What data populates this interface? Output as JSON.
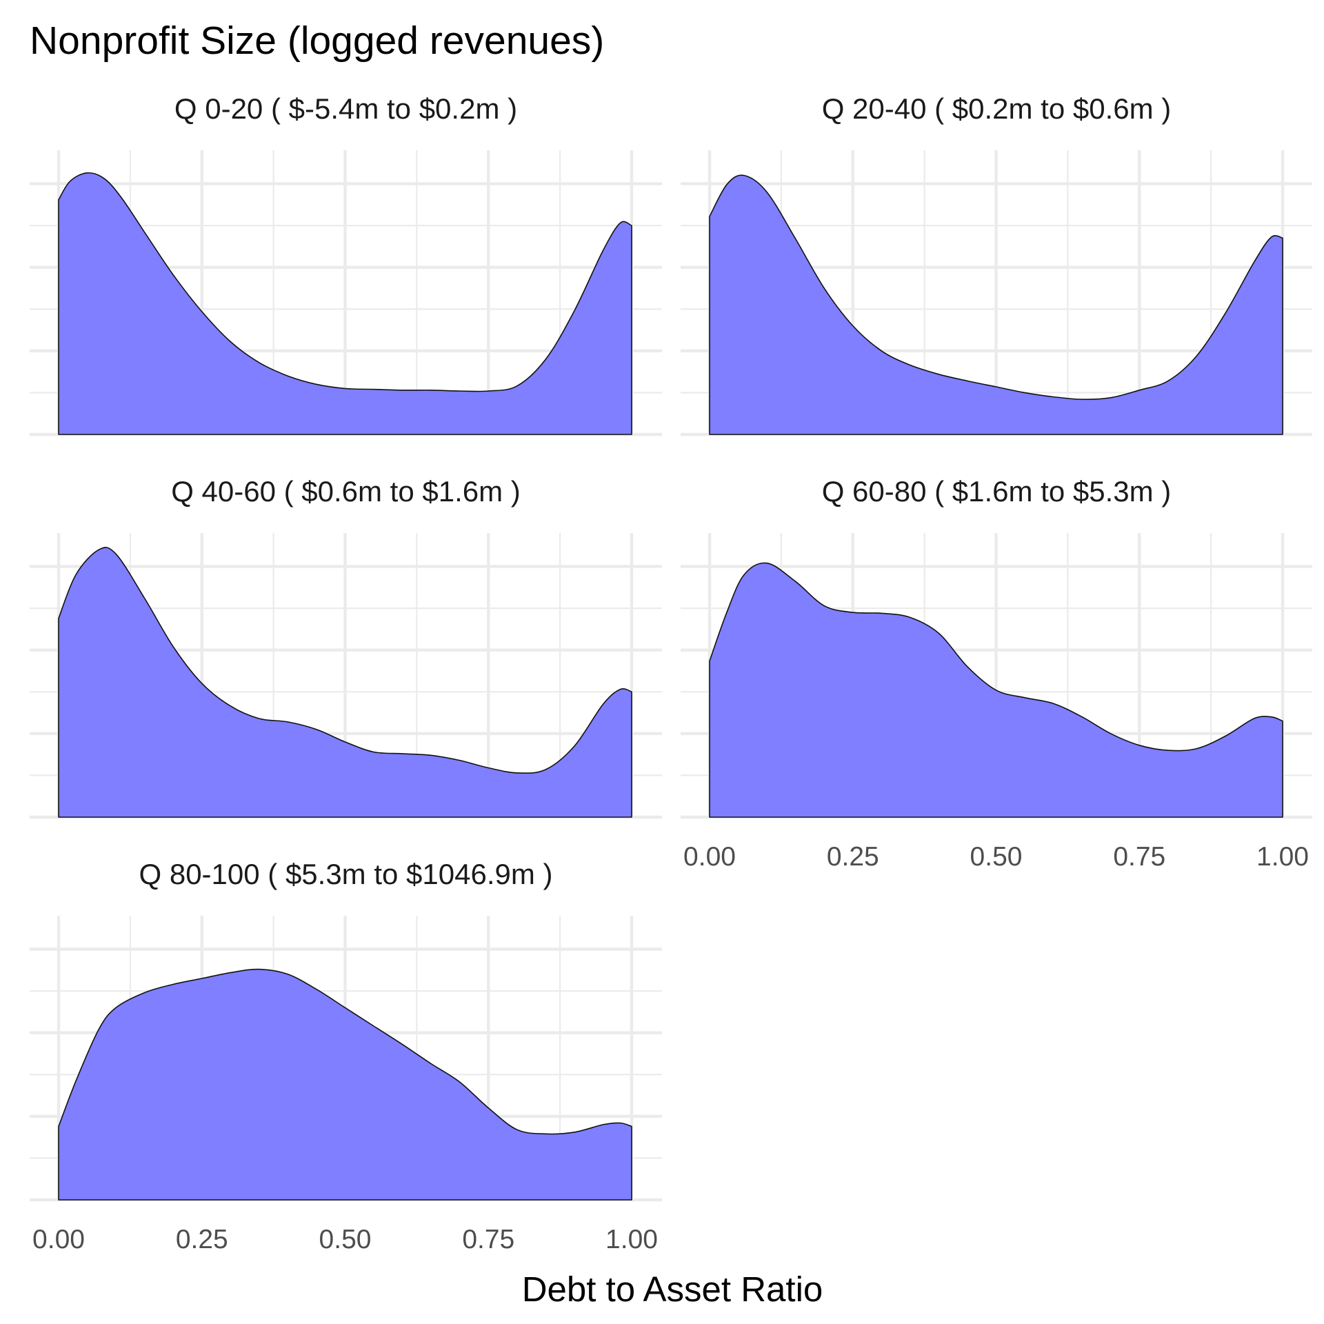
{
  "chart_data": {
    "type": "area",
    "subtype": "density (faceted)",
    "title": "Nonprofit Size (logged revenues)",
    "xlabel": "Debt to Asset Ratio",
    "ylabel": "",
    "xlim": [
      0,
      1
    ],
    "x_ticks": [
      "0.00",
      "0.25",
      "0.50",
      "0.75",
      "1.00"
    ],
    "y_ticks_shown": false,
    "grid": true,
    "fill_color": "#7f7fff",
    "line_color": "#111111",
    "panels": [
      {
        "label": "Q 0-20   ( $-5.4m to $0.2m )",
        "x": [
          0,
          0.02,
          0.05,
          0.08,
          0.11,
          0.15,
          0.2,
          0.25,
          0.3,
          0.35,
          0.4,
          0.45,
          0.5,
          0.55,
          0.6,
          0.65,
          0.7,
          0.75,
          0.8,
          0.85,
          0.9,
          0.95,
          0.98,
          1.0
        ],
        "y": [
          2.81,
          3.03,
          3.13,
          3.06,
          2.83,
          2.42,
          1.91,
          1.47,
          1.11,
          0.86,
          0.7,
          0.6,
          0.55,
          0.54,
          0.53,
          0.53,
          0.52,
          0.52,
          0.58,
          0.9,
          1.48,
          2.2,
          2.53,
          2.5
        ]
      },
      {
        "label": "Q 20-40   ( $0.2m to $0.6m )",
        "x": [
          0,
          0.03,
          0.06,
          0.1,
          0.15,
          0.2,
          0.25,
          0.3,
          0.35,
          0.4,
          0.45,
          0.5,
          0.55,
          0.6,
          0.65,
          0.7,
          0.75,
          0.8,
          0.85,
          0.9,
          0.95,
          0.98,
          1.0
        ],
        "y": [
          2.61,
          2.99,
          3.1,
          2.9,
          2.34,
          1.75,
          1.3,
          1.0,
          0.83,
          0.72,
          0.64,
          0.57,
          0.5,
          0.45,
          0.42,
          0.44,
          0.53,
          0.64,
          0.94,
          1.45,
          2.06,
          2.36,
          2.35
        ]
      },
      {
        "label": "Q 40-60   ( $0.6m to $1.6m )",
        "x": [
          0,
          0.03,
          0.07,
          0.1,
          0.15,
          0.2,
          0.25,
          0.3,
          0.35,
          0.4,
          0.45,
          0.5,
          0.55,
          0.6,
          0.65,
          0.7,
          0.75,
          0.8,
          0.85,
          0.9,
          0.95,
          0.98,
          1.0
        ],
        "y": [
          2.38,
          2.9,
          3.2,
          3.15,
          2.62,
          2.04,
          1.6,
          1.33,
          1.18,
          1.14,
          1.05,
          0.9,
          0.78,
          0.76,
          0.74,
          0.68,
          0.59,
          0.53,
          0.57,
          0.85,
          1.35,
          1.53,
          1.5
        ]
      },
      {
        "label": "Q 60-80   ( $1.6m to $5.3m )",
        "x": [
          0,
          0.03,
          0.06,
          0.1,
          0.15,
          0.2,
          0.25,
          0.3,
          0.35,
          0.4,
          0.45,
          0.5,
          0.55,
          0.6,
          0.65,
          0.7,
          0.75,
          0.8,
          0.85,
          0.9,
          0.95,
          0.98,
          1.0
        ],
        "y": [
          1.87,
          2.45,
          2.9,
          3.04,
          2.82,
          2.53,
          2.45,
          2.44,
          2.39,
          2.2,
          1.8,
          1.52,
          1.43,
          1.36,
          1.2,
          1.0,
          0.86,
          0.8,
          0.82,
          0.97,
          1.18,
          1.2,
          1.15
        ]
      },
      {
        "label": "Q 80-100   ( $5.3m to $1046.9m )",
        "x": [
          0,
          0.03,
          0.07,
          0.1,
          0.15,
          0.2,
          0.25,
          0.3,
          0.35,
          0.4,
          0.45,
          0.5,
          0.55,
          0.6,
          0.65,
          0.7,
          0.75,
          0.8,
          0.85,
          0.9,
          0.95,
          0.98,
          1.0
        ],
        "y": [
          0.88,
          1.42,
          2.04,
          2.3,
          2.48,
          2.58,
          2.65,
          2.72,
          2.76,
          2.7,
          2.52,
          2.3,
          2.08,
          1.86,
          1.63,
          1.41,
          1.1,
          0.84,
          0.79,
          0.81,
          0.9,
          0.92,
          0.88
        ]
      }
    ]
  }
}
